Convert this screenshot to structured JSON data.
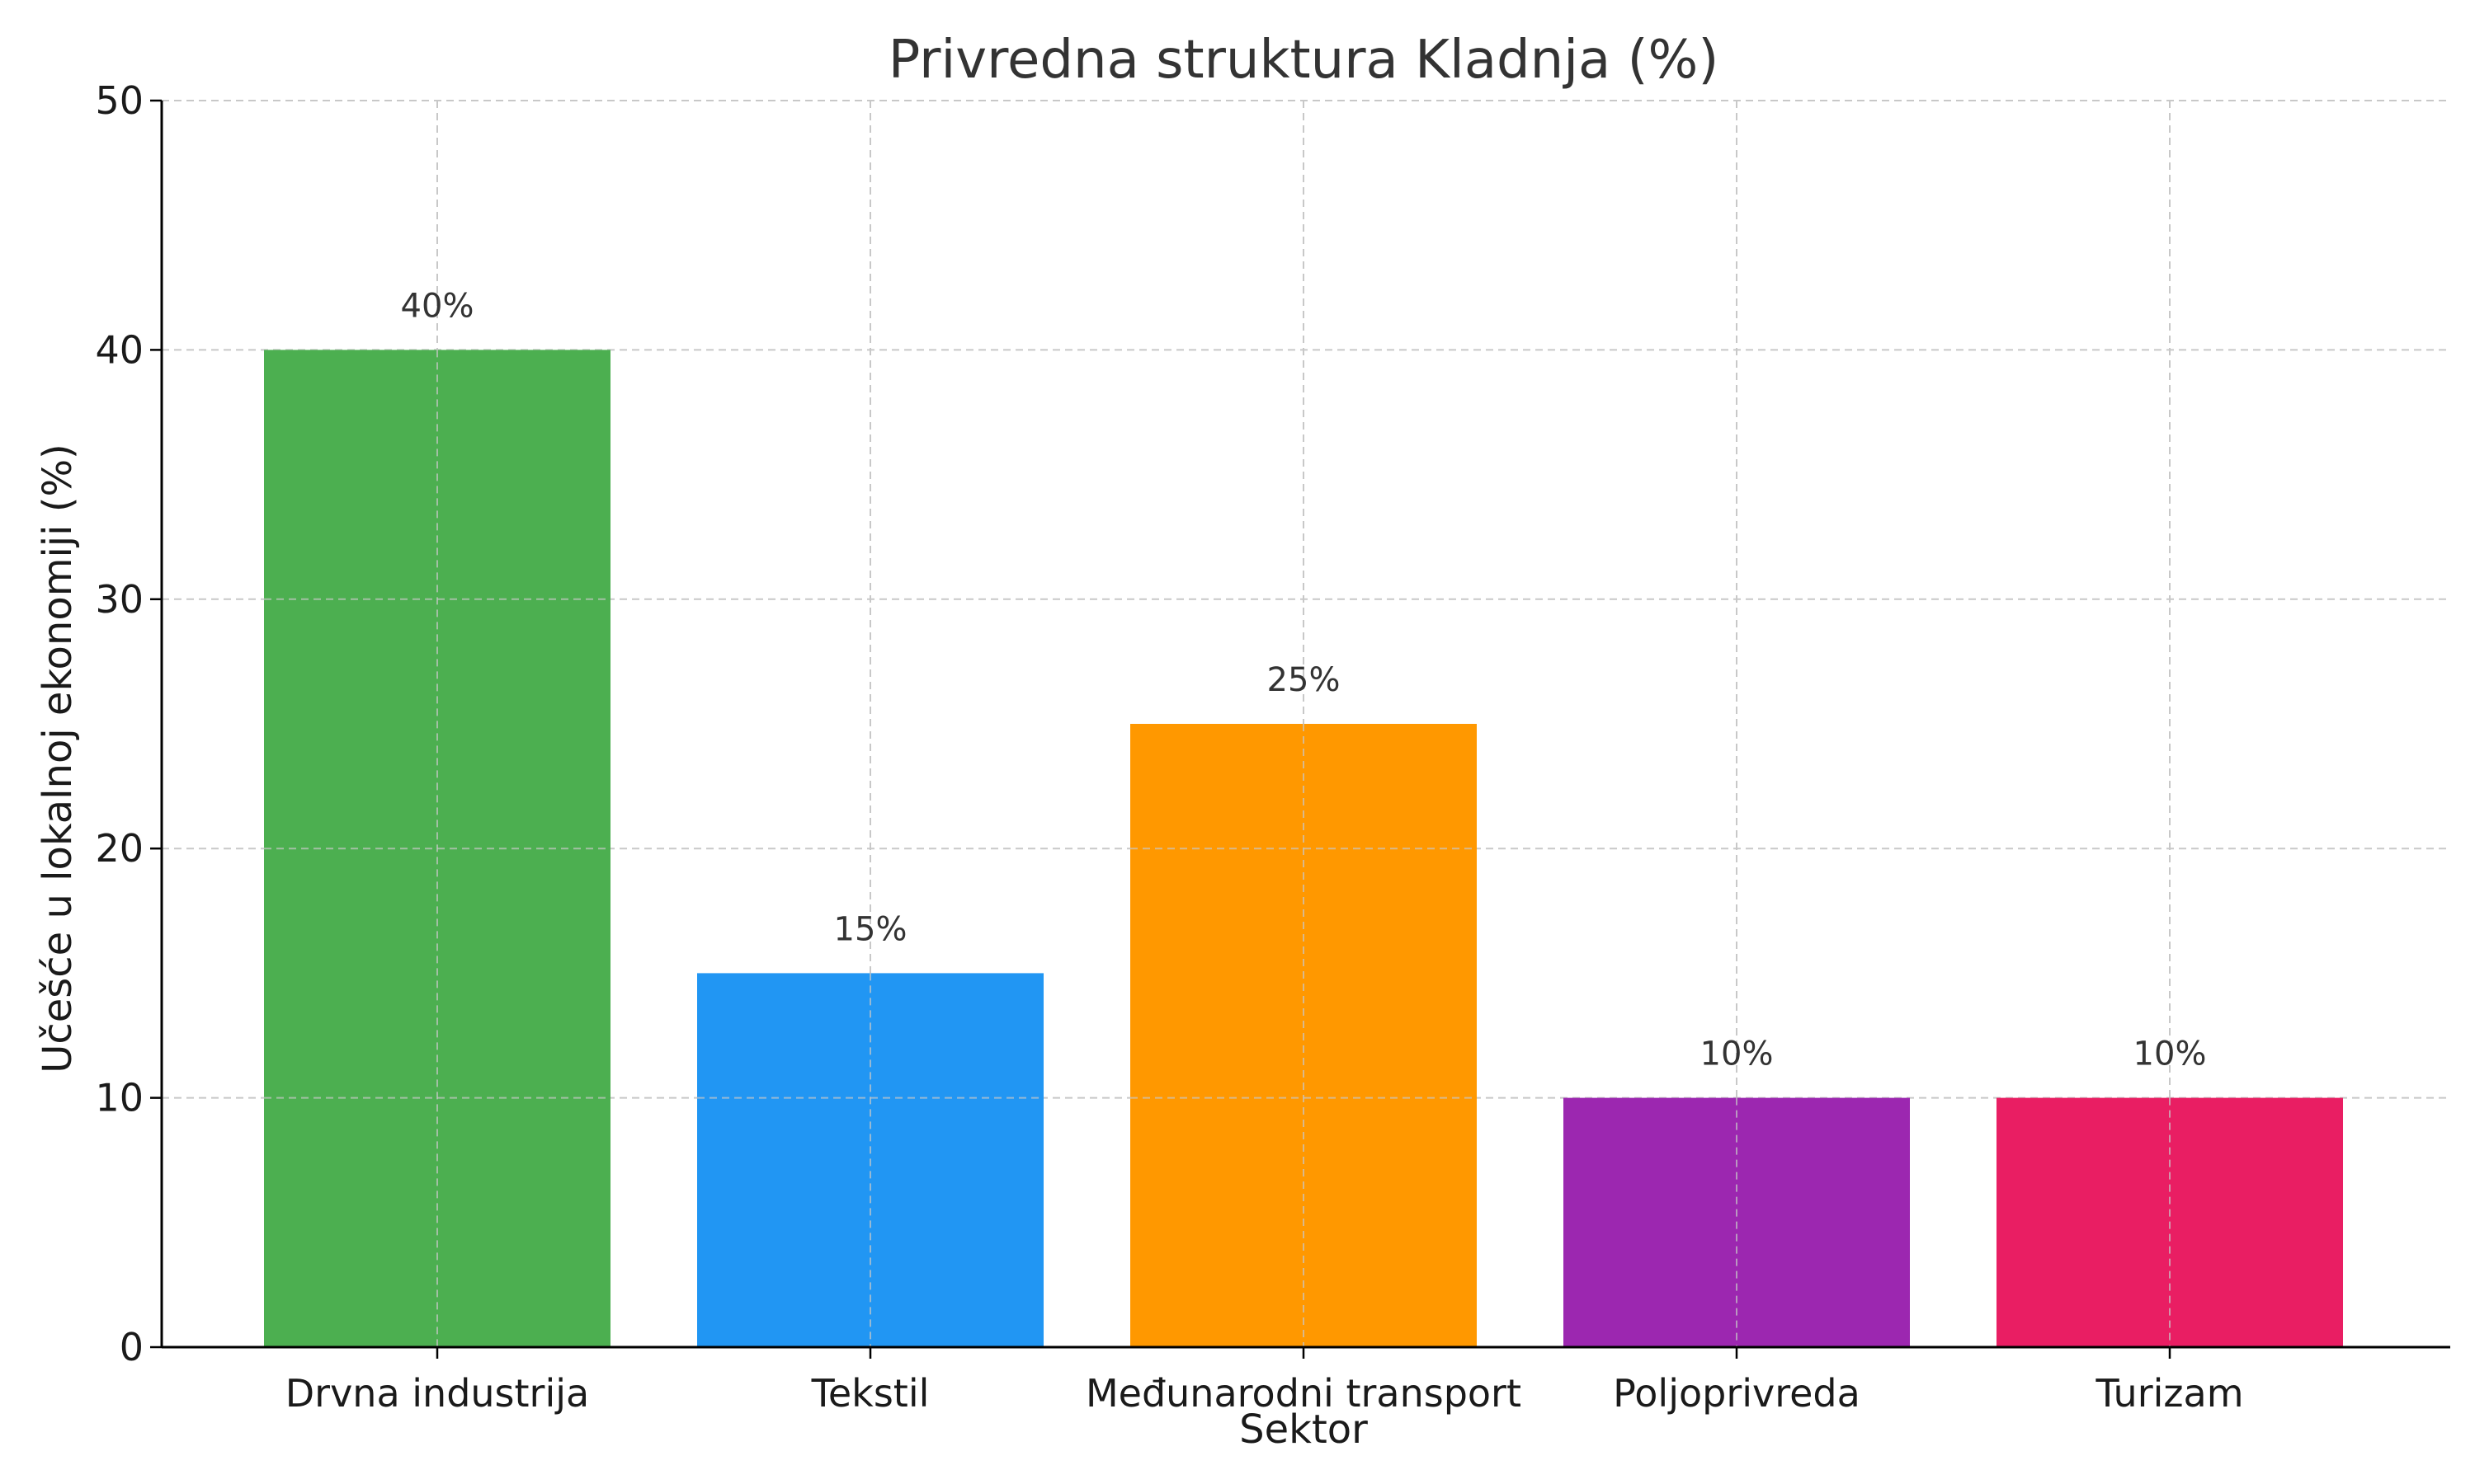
{
  "chart_data": {
    "type": "bar",
    "title": "Privredna struktura Kladnja (%)",
    "xlabel": "Sektor",
    "ylabel": "Učešće u lokalnoj ekonomiji (%)",
    "categories": [
      "Drvna industrija",
      "Tekstil",
      "Međunarodni transport",
      "Poljoprivreda",
      "Turizam"
    ],
    "values": [
      40,
      15,
      25,
      10,
      10
    ],
    "data_labels": [
      "40%",
      "15%",
      "25%",
      "10%",
      "10%"
    ],
    "colors": [
      "#4caf50",
      "#2196f3",
      "#ff9800",
      "#9c27b0",
      "#e91e63"
    ],
    "ylim": [
      0,
      50
    ],
    "yticks": [
      0,
      10,
      20,
      30,
      40,
      50
    ],
    "grid": true,
    "legend": "none"
  }
}
